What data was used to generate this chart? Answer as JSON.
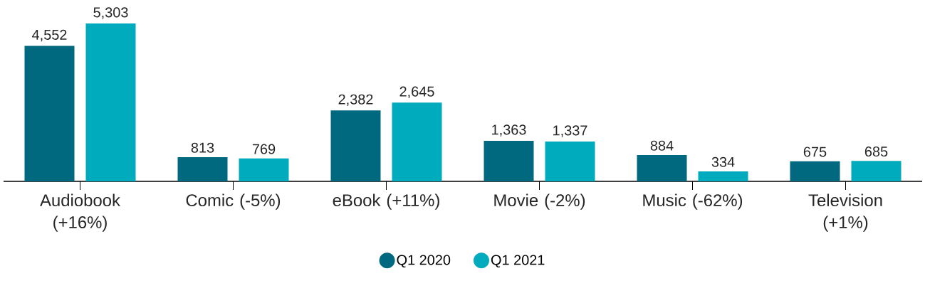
{
  "chart_data": {
    "type": "bar",
    "categories": [
      "Audiobook (+16%)",
      "Comic (-5%)",
      "eBook (+11%)",
      "Movie (-2%)",
      "Music (-62%)",
      "Television (+1%)"
    ],
    "series": [
      {
        "name": "Q1 2020",
        "color": "#00687f",
        "values": [
          4552,
          813,
          2382,
          1363,
          884,
          675
        ],
        "value_labels": [
          "4,552",
          "813",
          "2,382",
          "1,363",
          "884",
          "675"
        ]
      },
      {
        "name": "Q1 2021",
        "color": "#00abbd",
        "values": [
          5303,
          769,
          2645,
          1337,
          334,
          685
        ],
        "value_labels": [
          "5,303",
          "769",
          "2,645",
          "1,337",
          "334",
          "685"
        ]
      }
    ],
    "legend": "bottom"
  }
}
